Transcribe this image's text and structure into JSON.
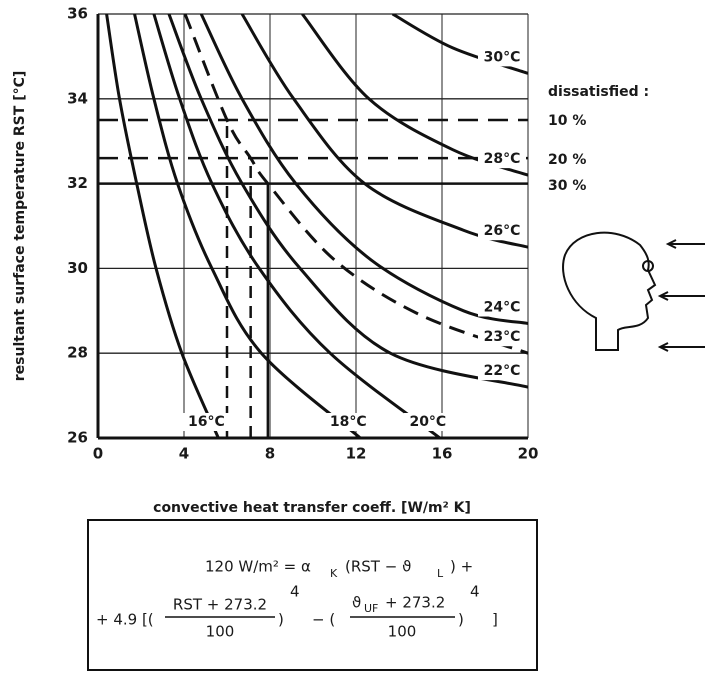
{
  "chart_data": {
    "type": "line",
    "x_label": "convective heat transfer coeff. [W/m² K]",
    "y_label": "resultant surface temperature RST [°C]",
    "xlim": [
      0,
      20
    ],
    "ylim": [
      26,
      36
    ],
    "xticks": [
      0,
      4,
      8,
      12,
      16,
      20
    ],
    "yticks": [
      26,
      28,
      30,
      32,
      34,
      36
    ],
    "grid": true,
    "series": [
      {
        "name": "16°C",
        "color": "#111111",
        "dashed": false,
        "x": [
          0.4,
          1.0,
          1.8,
          2.7,
          3.9,
          5.6
        ],
        "values": [
          36,
          34,
          32,
          30,
          28,
          26
        ]
      },
      {
        "name": "18°C",
        "color": "#111111",
        "dashed": false,
        "x": [
          1.7,
          2.6,
          3.7,
          5.3,
          7.6,
          12.2
        ],
        "values": [
          36,
          34,
          32,
          30,
          28,
          26
        ]
      },
      {
        "name": "20°C",
        "color": "#111111",
        "dashed": false,
        "x": [
          2.6,
          3.8,
          5.3,
          7.5,
          10.8,
          15.9
        ],
        "values": [
          36,
          34,
          32,
          30,
          28,
          26
        ]
      },
      {
        "name": "22°C",
        "color": "#111111",
        "dashed": false,
        "x": [
          3.3,
          4.8,
          6.7,
          9.4,
          13.6,
          20
        ],
        "values": [
          36,
          34,
          32,
          30,
          28,
          27.2
        ]
      },
      {
        "name": "23°C",
        "color": "#111111",
        "dashed": true,
        "x": [
          4.05,
          6.0,
          7.1,
          7.9,
          11.0,
          15.0,
          20
        ],
        "values": [
          36,
          33.5,
          32.6,
          32,
          30.2,
          28.9,
          28.0
        ]
      },
      {
        "name": "24°C",
        "color": "#111111",
        "dashed": false,
        "x": [
          4.8,
          6.7,
          9.2,
          12.7,
          17.0,
          20
        ],
        "values": [
          36,
          34,
          32,
          30.2,
          29.0,
          28.7
        ]
      },
      {
        "name": "26°C",
        "color": "#111111",
        "dashed": false,
        "x": [
          6.7,
          9.1,
          12.4,
          17.0,
          20
        ],
        "values": [
          36,
          34,
          32,
          30.9,
          30.5
        ]
      },
      {
        "name": "28°C",
        "color": "#111111",
        "dashed": false,
        "x": [
          9.5,
          12.6,
          16.5,
          20
        ],
        "values": [
          36,
          34,
          32.8,
          32.2
        ]
      },
      {
        "name": "30°C",
        "color": "#111111",
        "dashed": false,
        "x": [
          13.7,
          16.5,
          20
        ],
        "values": [
          36,
          35.2,
          34.6
        ]
      }
    ],
    "reference_title": "dissatisfied :",
    "reference_lines": [
      {
        "label": "10 %",
        "value": 33.5,
        "dashed": true
      },
      {
        "label": "20 %",
        "value": 32.6,
        "dashed": true
      },
      {
        "label": "30 %",
        "value": 32,
        "dashed": false
      }
    ],
    "vertical_lines": [
      {
        "x": 6.0,
        "top": 33.5,
        "dashed": true
      },
      {
        "x": 7.1,
        "top": 32.6,
        "dashed": true
      },
      {
        "x": 7.9,
        "top": 32,
        "dashed": false
      }
    ]
  },
  "formula": {
    "lhs": "120 W/m² = α",
    "alpha_sub": "K",
    "mid": "(RST − ϑ",
    "theta_sub": "L",
    "end": ") +",
    "coef": "+ 4.9 [(",
    "frac1_num": "RST + 273.2",
    "denominator": "100",
    "close": ")",
    "exponent": "4",
    "minus": "− (",
    "frac2_theta": "ϑ",
    "frac2_sub": "UF",
    "frac2_rest": "+ 273.2",
    "bracket": "]"
  }
}
